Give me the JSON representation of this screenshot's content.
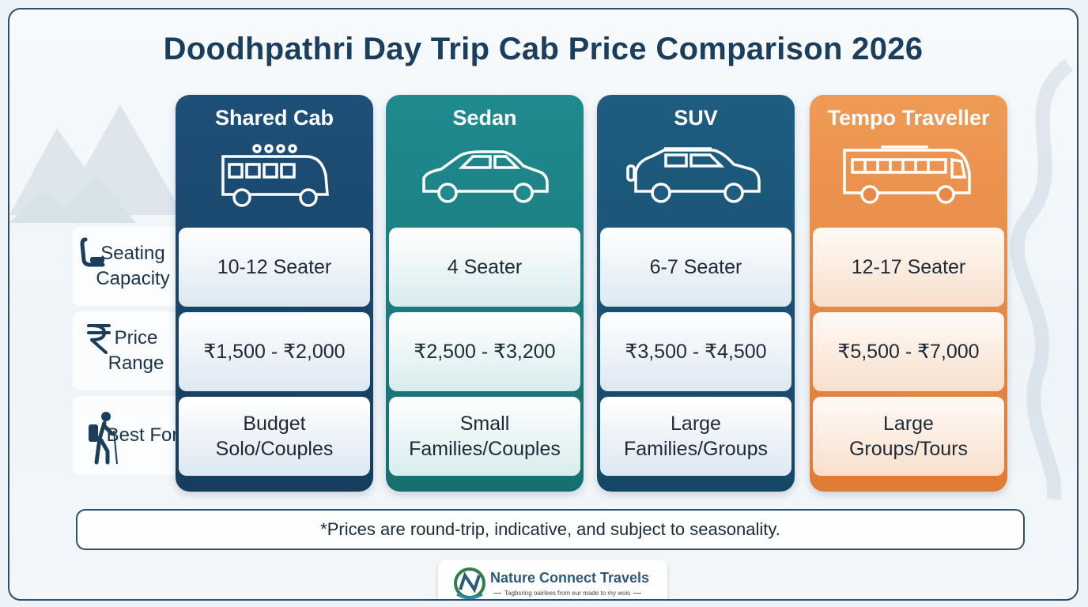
{
  "title": "Doodhpathri Day Trip Cab Price Comparison 2026",
  "row_labels": [
    {
      "text": "Seating Capacity",
      "icon": "seat-icon"
    },
    {
      "text": "Price Range",
      "icon": "rupee-icon"
    },
    {
      "text": "Best For",
      "icon": "hiker-icon"
    }
  ],
  "columns": [
    {
      "name": "Shared Cab",
      "icon": "minibus-icon",
      "seating": "10-12 Seater",
      "price": "₹1,500 - ₹2,000",
      "best_for": "Budget Solo/Couples"
    },
    {
      "name": "Sedan",
      "icon": "sedan-icon",
      "seating": "4 Seater",
      "price": "₹2,500 - ₹3,200",
      "best_for": "Small Families/Couples"
    },
    {
      "name": "SUV",
      "icon": "suv-icon",
      "seating": "6-7 Seater",
      "price": "₹3,500 - ₹4,500",
      "best_for": "Large Families/Groups"
    },
    {
      "name": "Tempo Traveller",
      "icon": "bus-icon",
      "seating": "12-17 Seater",
      "price": "₹5,500 - ₹7,000",
      "best_for": "Large Groups/Tours"
    }
  ],
  "note": "*Prices are round-trip, indicative, and subject to seasonality.",
  "brand": {
    "name": "Nature Connect Travels",
    "tagline": "Tagbsring oairlees from eur made to my wois"
  },
  "colors": {
    "navy": "#1b3e5c",
    "blue_column": "#1d4f78",
    "teal_column": "#1f8a8f",
    "suv_column": "#1e5d80",
    "orange_column": "#e88a45"
  }
}
